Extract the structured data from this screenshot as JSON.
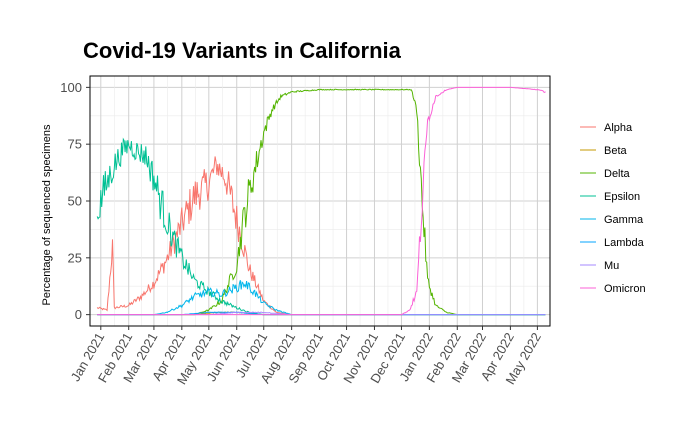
{
  "chart_data": {
    "type": "line",
    "title": "Covid-19 Variants in California",
    "xlabel": "",
    "ylabel": "Percentage of sequenced specimens",
    "ylim": [
      0,
      100
    ],
    "yticks": [
      0,
      25,
      50,
      75,
      100
    ],
    "xlim": [
      "2020-12-20",
      "2022-05-15"
    ],
    "x_ticks": [
      {
        "date": "2021-01-01",
        "label": "Jan 2021"
      },
      {
        "date": "2021-02-01",
        "label": "Feb 2021"
      },
      {
        "date": "2021-03-01",
        "label": "Mar 2021"
      },
      {
        "date": "2021-04-01",
        "label": "Apr 2021"
      },
      {
        "date": "2021-05-01",
        "label": "May 2021"
      },
      {
        "date": "2021-06-01",
        "label": "Jun 2021"
      },
      {
        "date": "2021-07-01",
        "label": "Jul 2021"
      },
      {
        "date": "2021-08-01",
        "label": "Aug 2021"
      },
      {
        "date": "2021-09-01",
        "label": "Sep 2021"
      },
      {
        "date": "2021-10-01",
        "label": "Oct 2021"
      },
      {
        "date": "2021-11-01",
        "label": "Nov 2021"
      },
      {
        "date": "2021-12-01",
        "label": "Dec 2021"
      },
      {
        "date": "2022-01-01",
        "label": "Jan 2022"
      },
      {
        "date": "2022-02-01",
        "label": "Feb 2022"
      },
      {
        "date": "2022-03-01",
        "label": "Mar 2022"
      },
      {
        "date": "2022-04-01",
        "label": "Apr 2022"
      },
      {
        "date": "2022-05-01",
        "label": "May 2022"
      }
    ],
    "grid": true,
    "legend_position": "right",
    "series": [
      {
        "name": "Alpha",
        "color": "#F8766D",
        "points": [
          [
            "2020-12-28",
            3
          ],
          [
            "2021-01-08",
            2
          ],
          [
            "2021-01-14",
            30
          ],
          [
            "2021-01-16",
            3
          ],
          [
            "2021-02-01",
            4
          ],
          [
            "2021-02-15",
            8
          ],
          [
            "2021-03-01",
            14
          ],
          [
            "2021-03-15",
            24
          ],
          [
            "2021-04-01",
            40
          ],
          [
            "2021-04-15",
            52
          ],
          [
            "2021-05-01",
            58
          ],
          [
            "2021-05-10",
            66
          ],
          [
            "2021-05-20",
            60
          ],
          [
            "2021-06-01",
            42
          ],
          [
            "2021-06-15",
            20
          ],
          [
            "2021-07-01",
            6
          ],
          [
            "2021-07-15",
            1
          ],
          [
            "2021-08-01",
            0
          ],
          [
            "2022-05-10",
            0
          ]
        ]
      },
      {
        "name": "Beta",
        "color": "#C49A00",
        "points": [
          [
            "2020-12-28",
            0
          ],
          [
            "2021-04-15",
            0
          ],
          [
            "2021-05-10",
            1
          ],
          [
            "2021-06-01",
            1
          ],
          [
            "2021-07-01",
            0
          ],
          [
            "2022-05-10",
            0
          ]
        ]
      },
      {
        "name": "Delta",
        "color": "#53B400",
        "points": [
          [
            "2020-12-28",
            0
          ],
          [
            "2021-04-15",
            0
          ],
          [
            "2021-05-01",
            2
          ],
          [
            "2021-05-15",
            6
          ],
          [
            "2021-06-01",
            22
          ],
          [
            "2021-06-10",
            45
          ],
          [
            "2021-06-20",
            62
          ],
          [
            "2021-07-01",
            80
          ],
          [
            "2021-07-10",
            90
          ],
          [
            "2021-07-20",
            96
          ],
          [
            "2021-08-01",
            98
          ],
          [
            "2021-09-01",
            99
          ],
          [
            "2021-11-01",
            99
          ],
          [
            "2021-12-12",
            99
          ],
          [
            "2021-12-18",
            90
          ],
          [
            "2021-12-24",
            50
          ],
          [
            "2021-12-30",
            15
          ],
          [
            "2022-01-08",
            4
          ],
          [
            "2022-01-20",
            1
          ],
          [
            "2022-02-01",
            0
          ],
          [
            "2022-05-10",
            0
          ]
        ]
      },
      {
        "name": "Epsilon",
        "color": "#00C094",
        "points": [
          [
            "2020-12-28",
            45
          ],
          [
            "2021-01-05",
            55
          ],
          [
            "2021-01-15",
            65
          ],
          [
            "2021-01-25",
            72
          ],
          [
            "2021-02-01",
            75
          ],
          [
            "2021-02-10",
            72
          ],
          [
            "2021-02-20",
            70
          ],
          [
            "2021-03-01",
            60
          ],
          [
            "2021-03-10",
            48
          ],
          [
            "2021-03-20",
            36
          ],
          [
            "2021-04-01",
            25
          ],
          [
            "2021-04-15",
            15
          ],
          [
            "2021-05-01",
            10
          ],
          [
            "2021-05-15",
            6
          ],
          [
            "2021-06-01",
            3
          ],
          [
            "2021-06-15",
            1
          ],
          [
            "2021-07-01",
            0
          ],
          [
            "2022-05-10",
            0
          ]
        ]
      },
      {
        "name": "Gamma",
        "color": "#00B6EB",
        "points": [
          [
            "2020-12-28",
            0
          ],
          [
            "2021-03-01",
            0
          ],
          [
            "2021-03-15",
            1
          ],
          [
            "2021-04-01",
            4
          ],
          [
            "2021-04-15",
            8
          ],
          [
            "2021-05-01",
            10
          ],
          [
            "2021-05-15",
            9
          ],
          [
            "2021-06-01",
            12
          ],
          [
            "2021-06-10",
            14
          ],
          [
            "2021-06-20",
            10
          ],
          [
            "2021-07-01",
            5
          ],
          [
            "2021-07-15",
            2
          ],
          [
            "2021-08-01",
            0
          ],
          [
            "2022-05-10",
            0
          ]
        ]
      },
      {
        "name": "Lambda",
        "color": "#06A4FF",
        "points": [
          [
            "2020-12-28",
            0
          ],
          [
            "2021-04-01",
            0
          ],
          [
            "2021-05-01",
            1
          ],
          [
            "2021-06-01",
            1
          ],
          [
            "2021-07-01",
            0
          ],
          [
            "2022-05-10",
            0
          ]
        ]
      },
      {
        "name": "Mu",
        "color": "#A58AFF",
        "points": [
          [
            "2020-12-28",
            0
          ],
          [
            "2021-05-01",
            0
          ],
          [
            "2021-06-01",
            1
          ],
          [
            "2021-07-01",
            1
          ],
          [
            "2021-08-01",
            0
          ],
          [
            "2022-05-10",
            0
          ]
        ]
      },
      {
        "name": "Omicron",
        "color": "#FB61D7",
        "points": [
          [
            "2020-12-28",
            0
          ],
          [
            "2021-12-01",
            0
          ],
          [
            "2021-12-10",
            2
          ],
          [
            "2021-12-18",
            10
          ],
          [
            "2021-12-24",
            50
          ],
          [
            "2021-12-30",
            85
          ],
          [
            "2022-01-08",
            96
          ],
          [
            "2022-01-20",
            99
          ],
          [
            "2022-02-01",
            100
          ],
          [
            "2022-03-01",
            100
          ],
          [
            "2022-04-01",
            100
          ],
          [
            "2022-05-01",
            99
          ],
          [
            "2022-05-10",
            98
          ]
        ]
      }
    ]
  }
}
